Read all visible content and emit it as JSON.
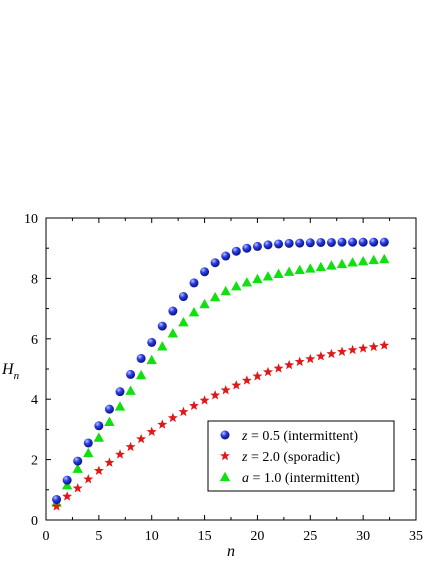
{
  "chart_data": {
    "type": "scatter",
    "xlabel": "n",
    "ylabel": "H",
    "ylabel_subscript": "n",
    "xlim": [
      0,
      35
    ],
    "ylim": [
      0,
      10
    ],
    "xticks": [
      0,
      5,
      10,
      15,
      20,
      25,
      30,
      35
    ],
    "yticks": [
      0,
      2,
      4,
      6,
      8,
      10
    ],
    "grid": false,
    "legend_position": "bottom-right",
    "x": [
      1,
      2,
      3,
      4,
      5,
      6,
      7,
      8,
      9,
      10,
      11,
      12,
      13,
      14,
      15,
      16,
      17,
      18,
      19,
      20,
      21,
      22,
      23,
      24,
      25,
      26,
      27,
      28,
      29,
      30,
      31,
      32
    ],
    "series": [
      {
        "var": "z",
        "rest": " = 0.5 (intermittent)",
        "marker": "circle",
        "color": "#1f2fd6",
        "values": [
          0.68,
          1.32,
          1.95,
          2.55,
          3.12,
          3.67,
          4.25,
          4.82,
          5.35,
          5.88,
          6.42,
          6.92,
          7.4,
          7.85,
          8.22,
          8.52,
          8.74,
          8.9,
          9.0,
          9.06,
          9.11,
          9.14,
          9.16,
          9.17,
          9.18,
          9.19,
          9.19,
          9.2,
          9.2,
          9.2,
          9.2,
          9.2
        ]
      },
      {
        "var": "z",
        "rest": " = 2.0 (sporadic)",
        "marker": "star",
        "color": "#e01818",
        "values": [
          0.45,
          0.78,
          1.05,
          1.35,
          1.63,
          1.9,
          2.17,
          2.42,
          2.68,
          2.92,
          3.16,
          3.38,
          3.58,
          3.78,
          3.96,
          4.13,
          4.3,
          4.46,
          4.62,
          4.76,
          4.9,
          5.02,
          5.13,
          5.24,
          5.33,
          5.42,
          5.5,
          5.57,
          5.63,
          5.68,
          5.73,
          5.78
        ]
      },
      {
        "var": "a",
        "rest": " = 1.0 (intermittent)",
        "marker": "triangle",
        "color": "#10e010",
        "values": [
          0.58,
          1.15,
          1.7,
          2.22,
          2.73,
          3.25,
          3.76,
          4.28,
          4.8,
          5.3,
          5.75,
          6.18,
          6.55,
          6.88,
          7.15,
          7.38,
          7.58,
          7.74,
          7.87,
          7.98,
          8.07,
          8.15,
          8.22,
          8.28,
          8.33,
          8.38,
          8.43,
          8.48,
          8.53,
          8.57,
          8.61,
          8.64
        ]
      }
    ]
  }
}
